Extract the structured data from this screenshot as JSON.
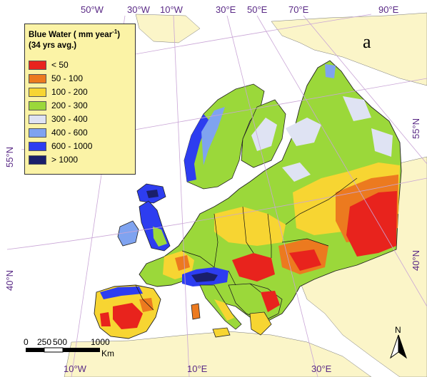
{
  "panel_label": "a",
  "legend": {
    "title": "Blue Water ( mm year",
    "title_sup": "-1",
    "title_close": ")",
    "subtitle": "(34 yrs avg.)",
    "items": [
      {
        "label": "< 50",
        "color": "#e8231d"
      },
      {
        "label": "50 - 100",
        "color": "#ec7a1f"
      },
      {
        "label": "100 - 200",
        "color": "#f7d532"
      },
      {
        "label": "200 - 300",
        "color": "#9bd83a"
      },
      {
        "label": "300 - 400",
        "color": "#dfe3f3"
      },
      {
        "label": "400 - 600",
        "color": "#7fa3f0"
      },
      {
        "label": "600 - 1000",
        "color": "#2d3df0"
      },
      {
        "label": "> 1000",
        "color": "#1a1f6b"
      }
    ]
  },
  "graticule": {
    "top": [
      "50°W",
      "30°W",
      "10°W",
      "30°E",
      "50°E",
      "70°E",
      "90°E"
    ],
    "bottom": [
      "10°W",
      "10°E",
      "30°E"
    ],
    "left": [
      "55°N",
      "40°N"
    ],
    "right": [
      "55°N",
      "40°N"
    ]
  },
  "scale_bar": {
    "ticks": [
      "0",
      "250",
      "500",
      "1000"
    ],
    "unit": "Km"
  },
  "north_label": "N",
  "colors": {
    "sea": "#ffffff",
    "land_outside": "#fbf5c8",
    "graticule": "#c9a5d6",
    "label": "#5a2a86"
  }
}
